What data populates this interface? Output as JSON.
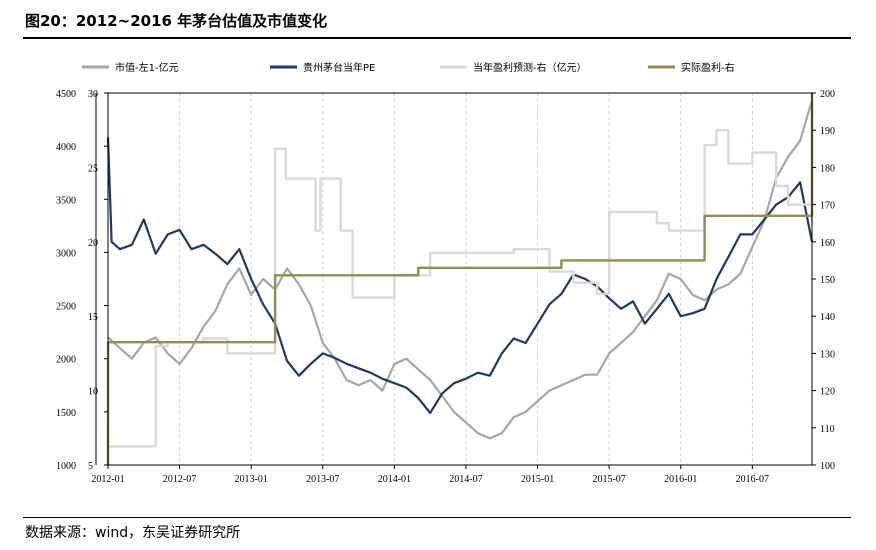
{
  "figure_title": "图20：2012~2016 年茅台估值及市值变化",
  "source_note": "数据来源：wind，东吴证券研究所",
  "chart_data": {
    "type": "line",
    "legend_position": "top",
    "grid": "vertical-dashed",
    "x_tick_labels": [
      "2012-01",
      "2012-07",
      "2013-01",
      "2013-07",
      "2014-01",
      "2014-07",
      "2015-01",
      "2015-07",
      "2016-01",
      "2016-07"
    ],
    "x_range": [
      0,
      59
    ],
    "axes": {
      "left_outer": {
        "range": [
          1000,
          4500
        ],
        "ticks": [
          1000,
          1500,
          2000,
          2500,
          3000,
          3500,
          4000,
          4500
        ]
      },
      "left_inner": {
        "range": [
          5,
          30
        ],
        "ticks": [
          5,
          10,
          15,
          20,
          25,
          30
        ]
      },
      "right": {
        "range": [
          100,
          200
        ],
        "ticks": [
          100,
          110,
          120,
          130,
          140,
          150,
          160,
          170,
          180,
          190,
          200
        ]
      }
    },
    "series": [
      {
        "name": "市值-左1-亿元",
        "axis": "left_outer",
        "color": "#a6a6a6",
        "style": "line",
        "points": [
          [
            0,
            2200
          ],
          [
            1,
            2100
          ],
          [
            2,
            2000
          ],
          [
            3,
            2150
          ],
          [
            4,
            2200
          ],
          [
            5,
            2050
          ],
          [
            6,
            1950
          ],
          [
            7,
            2100
          ],
          [
            8,
            2300
          ],
          [
            9,
            2450
          ],
          [
            10,
            2700
          ],
          [
            11,
            2850
          ],
          [
            12,
            2600
          ],
          [
            13,
            2750
          ],
          [
            14,
            2650
          ],
          [
            15,
            2850
          ],
          [
            16,
            2700
          ],
          [
            17,
            2500
          ],
          [
            18,
            2150
          ],
          [
            19,
            2000
          ],
          [
            20,
            1800
          ],
          [
            21,
            1750
          ],
          [
            22,
            1800
          ],
          [
            23,
            1700
          ],
          [
            24,
            1950
          ],
          [
            25,
            2000
          ],
          [
            26,
            1900
          ],
          [
            27,
            1800
          ],
          [
            28,
            1650
          ],
          [
            29,
            1500
          ],
          [
            30,
            1400
          ],
          [
            31,
            1300
          ],
          [
            32,
            1250
          ],
          [
            33,
            1300
          ],
          [
            34,
            1450
          ],
          [
            35,
            1500
          ],
          [
            36,
            1600
          ],
          [
            37,
            1700
          ],
          [
            38,
            1750
          ],
          [
            39,
            1800
          ],
          [
            40,
            1850
          ],
          [
            41,
            1850
          ],
          [
            42,
            2050
          ],
          [
            43,
            2150
          ],
          [
            44,
            2250
          ],
          [
            45,
            2400
          ],
          [
            46,
            2550
          ],
          [
            47,
            2800
          ],
          [
            48,
            2750
          ],
          [
            49,
            2600
          ],
          [
            50,
            2550
          ],
          [
            51,
            2650
          ],
          [
            52,
            2700
          ],
          [
            53,
            2800
          ],
          [
            54,
            3050
          ],
          [
            55,
            3300
          ],
          [
            56,
            3700
          ],
          [
            57,
            3900
          ],
          [
            58,
            4050
          ],
          [
            59,
            4430
          ]
        ]
      },
      {
        "name": "贵州茅台当年PE",
        "axis": "left_inner",
        "color": "#1f3864",
        "style": "line",
        "points": [
          [
            0,
            27
          ],
          [
            0.3,
            20
          ],
          [
            1,
            19.5
          ],
          [
            2,
            19.8
          ],
          [
            3,
            21.5
          ],
          [
            4,
            19.2
          ],
          [
            5,
            20.5
          ],
          [
            6,
            20.8
          ],
          [
            7,
            19.5
          ],
          [
            8,
            19.8
          ],
          [
            9,
            19.2
          ],
          [
            10,
            18.5
          ],
          [
            11,
            19.5
          ],
          [
            12,
            17.5
          ],
          [
            13,
            15.8
          ],
          [
            14,
            14.5
          ],
          [
            15,
            12.0
          ],
          [
            16,
            11.0
          ],
          [
            17,
            11.8
          ],
          [
            18,
            12.5
          ],
          [
            19,
            12.2
          ],
          [
            20,
            11.8
          ],
          [
            21,
            11.5
          ],
          [
            22,
            11.2
          ],
          [
            23,
            10.8
          ],
          [
            24,
            10.5
          ],
          [
            25,
            10.2
          ],
          [
            26,
            9.5
          ],
          [
            27,
            8.5
          ],
          [
            28,
            9.8
          ],
          [
            29,
            10.5
          ],
          [
            30,
            10.8
          ],
          [
            31,
            11.2
          ],
          [
            32,
            11.0
          ],
          [
            33,
            12.5
          ],
          [
            34,
            13.5
          ],
          [
            35,
            13.2
          ],
          [
            36,
            14.5
          ],
          [
            37,
            15.8
          ],
          [
            38,
            16.5
          ],
          [
            39,
            17.8
          ],
          [
            40,
            17.5
          ],
          [
            41,
            17.0
          ],
          [
            42,
            16.2
          ],
          [
            43,
            15.5
          ],
          [
            44,
            16.0
          ],
          [
            45,
            14.5
          ],
          [
            46,
            15.5
          ],
          [
            47,
            16.5
          ],
          [
            48,
            15.0
          ],
          [
            49,
            15.2
          ],
          [
            50,
            15.5
          ],
          [
            51,
            17.5
          ],
          [
            52,
            19.0
          ],
          [
            53,
            20.5
          ],
          [
            54,
            20.5
          ],
          [
            55,
            21.5
          ],
          [
            56,
            22.5
          ],
          [
            57,
            23.0
          ],
          [
            58,
            24.0
          ],
          [
            59,
            20.0
          ]
        ]
      },
      {
        "name": "当年盈利预测-右（亿元）",
        "axis": "right",
        "color": "#d9d9d9",
        "style": "step",
        "points": [
          [
            0,
            105
          ],
          [
            4,
            105
          ],
          [
            4,
            132
          ],
          [
            5,
            132
          ],
          [
            5,
            133
          ],
          [
            8,
            133
          ],
          [
            8,
            134
          ],
          [
            10,
            134
          ],
          [
            10,
            130
          ],
          [
            14,
            130
          ],
          [
            14,
            185
          ],
          [
            14.9,
            185
          ],
          [
            14.9,
            177
          ],
          [
            17,
            177
          ],
          [
            17,
            177
          ],
          [
            17.4,
            177
          ],
          [
            17.4,
            163
          ],
          [
            17.8,
            163
          ],
          [
            17.8,
            177
          ],
          [
            19.5,
            177
          ],
          [
            19.5,
            163
          ],
          [
            20.5,
            163
          ],
          [
            20.5,
            145
          ],
          [
            24,
            145
          ],
          [
            24,
            151
          ],
          [
            27,
            151
          ],
          [
            27,
            157
          ],
          [
            34,
            157
          ],
          [
            34,
            158
          ],
          [
            37,
            158
          ],
          [
            37,
            152
          ],
          [
            39,
            152
          ],
          [
            39,
            149
          ],
          [
            41,
            149
          ],
          [
            41,
            146
          ],
          [
            42,
            146
          ],
          [
            42,
            168
          ],
          [
            45,
            168
          ],
          [
            45,
            168
          ],
          [
            46,
            168
          ],
          [
            46,
            165
          ],
          [
            47,
            165
          ],
          [
            47,
            163
          ],
          [
            49,
            163
          ],
          [
            49,
            163
          ],
          [
            50,
            163
          ],
          [
            50,
            186
          ],
          [
            51,
            186
          ],
          [
            51,
            190
          ],
          [
            52,
            190
          ],
          [
            52,
            181
          ],
          [
            54,
            181
          ],
          [
            54,
            184
          ],
          [
            56,
            184
          ],
          [
            56,
            175
          ],
          [
            57,
            175
          ],
          [
            57,
            170
          ],
          [
            59,
            170
          ],
          [
            59,
            165
          ]
        ]
      },
      {
        "name": "实际盈利-右",
        "axis": "right",
        "color": "#948a54",
        "style": "step",
        "points": [
          [
            0,
            100
          ],
          [
            0.01,
            133
          ],
          [
            14,
            133
          ],
          [
            14,
            151
          ],
          [
            26,
            151
          ],
          [
            26,
            153
          ],
          [
            38,
            153
          ],
          [
            38,
            155
          ],
          [
            50,
            155
          ],
          [
            50,
            167
          ],
          [
            59,
            167
          ],
          [
            59,
            200
          ]
        ]
      }
    ]
  }
}
